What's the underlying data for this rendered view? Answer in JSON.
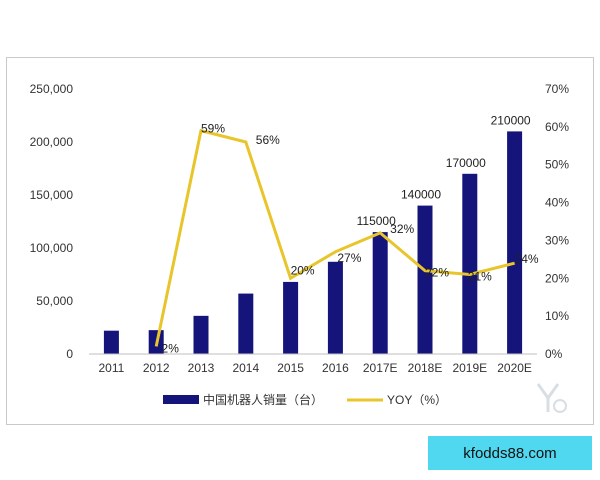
{
  "chart_data": {
    "type": "bar",
    "categories": [
      "2011",
      "2012",
      "2013",
      "2014",
      "2015",
      "2016",
      "2017E",
      "2018E",
      "2019E",
      "2020E"
    ],
    "series": [
      {
        "name": "中国机器人销量（台）",
        "type": "bar",
        "axis": "left",
        "color": "#14147a",
        "values": [
          22000,
          22500,
          36000,
          57000,
          68000,
          87000,
          115000,
          140000,
          170000,
          210000
        ],
        "labels": [
          "",
          "",
          "",
          "",
          "",
          "",
          "115000",
          "140000",
          "170000",
          "210000"
        ]
      },
      {
        "name": "YOY（%）",
        "type": "line",
        "axis": "right",
        "color": "#e8c52a",
        "values": [
          null,
          2,
          59,
          56,
          20,
          27,
          32,
          22,
          21,
          24
        ],
        "labels": [
          "",
          "2%",
          "59%",
          "56%",
          "20%",
          "27%",
          "32%",
          "22%",
          "21%",
          "24%"
        ]
      }
    ],
    "y_left": {
      "ylim": [
        0,
        250000
      ],
      "ticks": [
        0,
        50000,
        100000,
        150000,
        200000,
        250000
      ],
      "tick_labels": [
        "0",
        "50,000",
        "100,000",
        "150,000",
        "200,000",
        "250,000"
      ]
    },
    "y_right": {
      "ylim": [
        0,
        70
      ],
      "ticks": [
        0,
        10,
        20,
        30,
        40,
        50,
        60,
        70
      ],
      "tick_labels": [
        "0%",
        "10%",
        "20%",
        "30%",
        "40%",
        "50%",
        "60%",
        "70%"
      ]
    },
    "grid": false,
    "legend": "bottom"
  },
  "watermark": "kfodds88.com"
}
